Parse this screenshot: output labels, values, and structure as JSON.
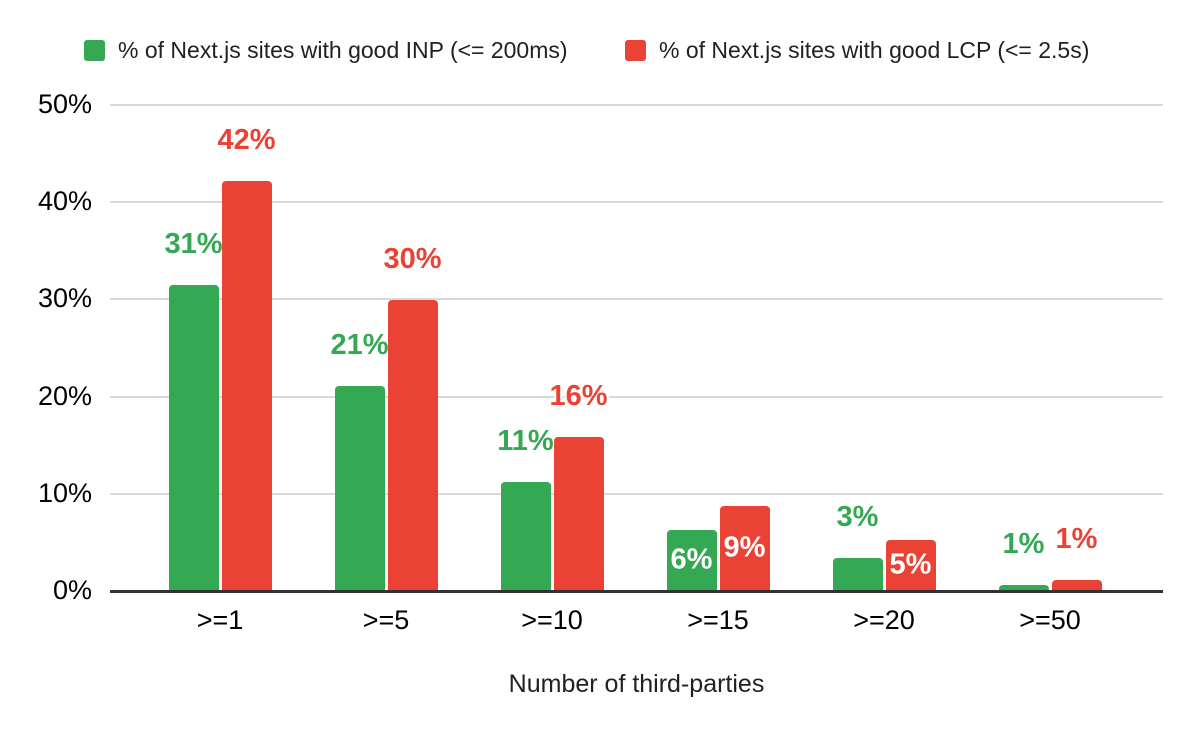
{
  "chart_data": {
    "type": "bar",
    "title": "",
    "xlabel": "Number of third-parties",
    "ylabel": "",
    "categories": [
      ">=1",
      ">=5",
      ">=10",
      ">=15",
      ">=20",
      ">=50"
    ],
    "series": [
      {
        "name": "% of Next.js sites with good INP (<= 200ms)",
        "color": "#34a853",
        "values": [
          31.4,
          21.0,
          11.1,
          6.2,
          3.3,
          0.5
        ],
        "labels": [
          "31%",
          "21%",
          "11%",
          "6%",
          "3%",
          "1%"
        ],
        "label_placement": [
          "above",
          "above",
          "above",
          "inside",
          "above",
          "above"
        ]
      },
      {
        "name": "% of Next.js sites with good LCP (<= 2.5s)",
        "color": "#ea4335",
        "values": [
          42.1,
          29.8,
          15.7,
          8.6,
          5.1,
          1.0
        ],
        "labels": [
          "42%",
          "30%",
          "16%",
          "9%",
          "5%",
          "1%"
        ],
        "label_placement": [
          "above",
          "above",
          "above",
          "inside",
          "inside",
          "above"
        ]
      }
    ],
    "y_ticks": [
      "50%",
      "40%",
      "30%",
      "20%",
      "10%",
      "0%"
    ],
    "ylim": [
      0,
      50
    ],
    "grid": true,
    "legend_position": "top"
  },
  "colors": {
    "inp_green": "#34a853",
    "lcp_red": "#ea4335",
    "gridline": "#d9d9d9",
    "axis_line": "#333333",
    "text": "#212121",
    "inside_label": "#ffffff",
    "background": "#ffffff"
  }
}
